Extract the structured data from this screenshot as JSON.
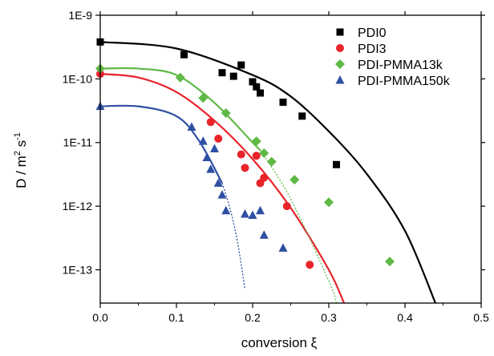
{
  "chart_data": {
    "type": "scatter",
    "xlabel": "conversion ξ",
    "ylabel": {
      "prefix": "D / m",
      "sup1": "2",
      "mid": " s",
      "sup2": "-1"
    },
    "xlim": [
      0,
      0.5
    ],
    "ylim": [
      3e-14,
      1e-09
    ],
    "yscale": "log",
    "x_ticks": [
      {
        "value": 0,
        "label": "0.0"
      },
      {
        "value": 0.1,
        "label": "0.1"
      },
      {
        "value": 0.2,
        "label": "0.2"
      },
      {
        "value": 0.3,
        "label": "0.3"
      },
      {
        "value": 0.4,
        "label": "0.4"
      },
      {
        "value": 0.5,
        "label": "0.5"
      }
    ],
    "y_ticks": [
      {
        "value": 1e-09,
        "label": "1E-9"
      },
      {
        "value": 1e-10,
        "label": "1E-10"
      },
      {
        "value": 1e-11,
        "label": "1E-11"
      },
      {
        "value": 1e-12,
        "label": "1E-12"
      },
      {
        "value": 1e-13,
        "label": "1E-13"
      }
    ],
    "legend_position": "top-right",
    "series": [
      {
        "name": "PDI0",
        "marker": "square",
        "color": "#000000",
        "points": [
          [
            0,
            3.8e-10
          ],
          [
            0.11,
            2.4e-10
          ],
          [
            0.16,
            1.25e-10
          ],
          [
            0.175,
            1.1e-10
          ],
          [
            0.185,
            1.65e-10
          ],
          [
            0.2,
            9e-11
          ],
          [
            0.205,
            7.5e-11
          ],
          [
            0.21,
            6e-11
          ],
          [
            0.24,
            4.3e-11
          ],
          [
            0.265,
            2.6e-11
          ],
          [
            0.31,
            4.5e-12
          ]
        ],
        "fit": {
          "x": [
            0,
            0.1,
            0.2,
            0.25,
            0.3,
            0.35,
            0.4,
            0.44
          ],
          "y": [
            3.8e-10,
            3e-10,
            1.15e-10,
            5.3e-11,
            1.5e-11,
            3.2e-12,
            4.1e-13,
            3e-14
          ],
          "dash": false
        }
      },
      {
        "name": "PDI3",
        "marker": "circle",
        "color": "#e8232a",
        "points": [
          [
            0,
            1.2e-10
          ],
          [
            0.145,
            2.1e-11
          ],
          [
            0.155,
            1.15e-11
          ],
          [
            0.185,
            6.5e-12
          ],
          [
            0.19,
            4e-12
          ],
          [
            0.205,
            6.2e-12
          ],
          [
            0.21,
            2.3e-12
          ],
          [
            0.215,
            2.8e-12
          ],
          [
            0.245,
            1e-12
          ],
          [
            0.275,
            1.2e-13
          ]
        ],
        "fit": {
          "x": [
            0,
            0.05,
            0.1,
            0.15,
            0.2,
            0.25,
            0.3,
            0.32
          ],
          "y": [
            1.2e-10,
            1.05e-10,
            6.2e-11,
            2.2e-11,
            5.5e-12,
            9.4e-13,
            1e-13,
            3e-14
          ],
          "dash": false
        }
      },
      {
        "name": "PDI-PMMA13k",
        "marker": "diamond",
        "color": "#5fb946",
        "points": [
          [
            0,
            1.45e-10
          ],
          [
            0.105,
            1.05e-10
          ],
          [
            0.135,
            5e-11
          ],
          [
            0.165,
            2.9e-11
          ],
          [
            0.205,
            1.05e-11
          ],
          [
            0.215,
            6.8e-12
          ],
          [
            0.225,
            5e-12
          ],
          [
            0.255,
            2.6e-12
          ],
          [
            0.3,
            1.15e-12
          ],
          [
            0.38,
            1.35e-13
          ]
        ],
        "fit": {
          "x": [
            0,
            0.05,
            0.1,
            0.15,
            0.2,
            0.21
          ],
          "y": [
            1.45e-10,
            1.45e-10,
            1.15e-10,
            4.2e-11,
            1e-11,
            7.6e-12
          ],
          "dash": false
        },
        "fit_ext": {
          "x": [
            0.21,
            0.25,
            0.3,
            0.31
          ],
          "y": [
            7.6e-12,
            1.3e-12,
            6.7e-14,
            3e-14
          ],
          "dash": true
        }
      },
      {
        "name": "PDI-PMMA150k",
        "marker": "triangle",
        "color": "#2e4fa3",
        "points": [
          [
            0,
            3.7e-11
          ],
          [
            0.12,
            1.75e-11
          ],
          [
            0.135,
            1.05e-11
          ],
          [
            0.14,
            5.8e-12
          ],
          [
            0.145,
            3.8e-12
          ],
          [
            0.15,
            8e-12
          ],
          [
            0.155,
            2.3e-12
          ],
          [
            0.16,
            1.5e-12
          ],
          [
            0.165,
            8.5e-13
          ],
          [
            0.19,
            7.5e-13
          ],
          [
            0.2,
            7.2e-13
          ],
          [
            0.21,
            8.5e-13
          ],
          [
            0.215,
            3.5e-13
          ],
          [
            0.24,
            2.2e-13
          ]
        ],
        "fit": {
          "x": [
            0,
            0.05,
            0.1,
            0.13,
            0.16
          ],
          "y": [
            3.7e-11,
            3.7e-11,
            2.6e-11,
            1.05e-11,
            2.3e-12
          ],
          "dash": false
        },
        "fit_ext": {
          "x": [
            0.16,
            0.17,
            0.18,
            0.19
          ],
          "y": [
            2.3e-12,
            9.5e-13,
            2.8e-13,
            5e-14
          ],
          "dash": true
        }
      }
    ]
  }
}
